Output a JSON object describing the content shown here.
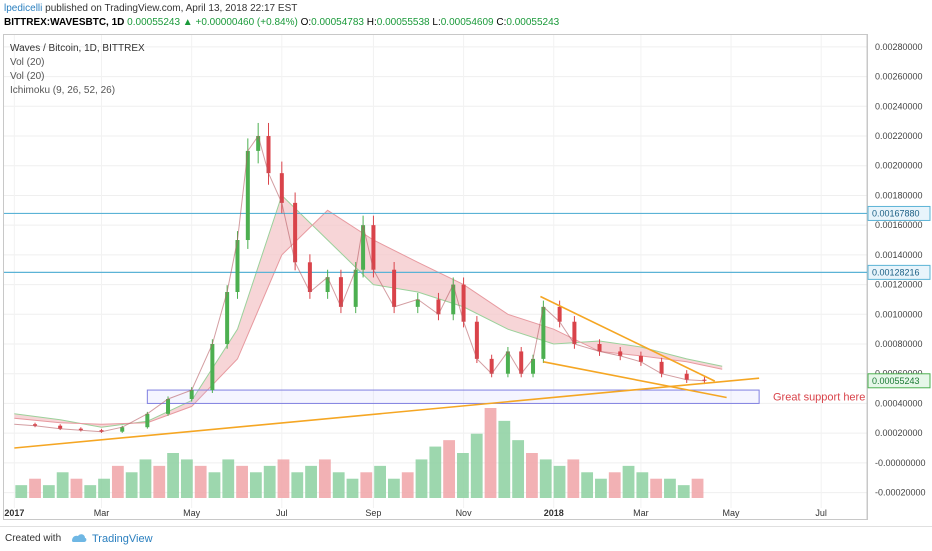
{
  "header": {
    "author": "lpedicelli",
    "published_text": "published on TradingView.com, April 13, 2018 22:17 EST"
  },
  "symbol": {
    "ticker": "BITTREX:WAVESBTC, 1D",
    "last": "0.00055243",
    "change": "+0.00000460 (+0.84%)",
    "open_label": "O:",
    "open": "0.00054783",
    "high_label": "H:",
    "high": "0.00055538",
    "low_label": "L:",
    "low": "0.00054609",
    "close_label": "C:",
    "close": "0.00055243"
  },
  "legend": {
    "title": "Waves / Bitcoin, 1D, BITTREX",
    "ind1": "Vol (20)",
    "ind2": "Vol (20)",
    "ind3": "Ichimoku (9, 26, 52, 26)"
  },
  "annotation": "Great support here",
  "footer": {
    "created": "Created with",
    "brand": "TradingView"
  },
  "colors": {
    "up": "#4caf50",
    "down": "#d9434a",
    "cloud_bear": "#f4c7c9",
    "cloud_bull": "#cfe8cf",
    "trend": "#f5a623",
    "hline": "#5bb3d6",
    "support_box": "#8080e0"
  },
  "chart_data": {
    "type": "candlestick",
    "y_axis_ticks": [
      "0.00280000",
      "0.00260000",
      "0.00240000",
      "0.00220000",
      "0.00200000",
      "0.00180000",
      "0.00160000",
      "0.00140000",
      "0.00120000",
      "0.00100000",
      "0.00080000",
      "0.00060000",
      "0.00040000",
      "0.00020000",
      "-0.00000000",
      "-0.00020000"
    ],
    "x_axis_ticks": [
      "2017",
      "Mar",
      "May",
      "Jul",
      "Sep",
      "Nov",
      "2018",
      "Mar",
      "May",
      "Jul"
    ],
    "price_labels": [
      {
        "value": 0.0016788,
        "text": "0.00167880",
        "kind": "hline"
      },
      {
        "value": 0.00128216,
        "text": "0.00128216",
        "kind": "hline"
      },
      {
        "value": 0.00055243,
        "text": "0.00055243",
        "kind": "last"
      }
    ],
    "series_close": [
      [
        "2017-01-01",
        0.00026
      ],
      [
        "2017-01-15",
        0.00025
      ],
      [
        "2017-02-01",
        0.00023
      ],
      [
        "2017-02-15",
        0.00022
      ],
      [
        "2017-03-01",
        0.00021
      ],
      [
        "2017-03-15",
        0.00024
      ],
      [
        "2017-04-01",
        0.00033
      ],
      [
        "2017-04-15",
        0.00043
      ],
      [
        "2017-05-01",
        0.00049
      ],
      [
        "2017-05-15",
        0.0008
      ],
      [
        "2017-05-25",
        0.00115
      ],
      [
        "2017-06-01",
        0.0015
      ],
      [
        "2017-06-08",
        0.0021
      ],
      [
        "2017-06-15",
        0.0022
      ],
      [
        "2017-06-22",
        0.00195
      ],
      [
        "2017-07-01",
        0.00175
      ],
      [
        "2017-07-10",
        0.00135
      ],
      [
        "2017-07-20",
        0.00115
      ],
      [
        "2017-08-01",
        0.00125
      ],
      [
        "2017-08-10",
        0.00105
      ],
      [
        "2017-08-20",
        0.0013
      ],
      [
        "2017-08-25",
        0.0016
      ],
      [
        "2017-09-01",
        0.0013
      ],
      [
        "2017-09-15",
        0.00105
      ],
      [
        "2017-10-01",
        0.0011
      ],
      [
        "2017-10-15",
        0.001
      ],
      [
        "2017-10-25",
        0.0012
      ],
      [
        "2017-11-01",
        0.00095
      ],
      [
        "2017-11-10",
        0.0007
      ],
      [
        "2017-11-20",
        0.0006
      ],
      [
        "2017-12-01",
        0.00075
      ],
      [
        "2017-12-10",
        0.0006
      ],
      [
        "2017-12-18",
        0.0007
      ],
      [
        "2017-12-25",
        0.00105
      ],
      [
        "2018-01-05",
        0.00095
      ],
      [
        "2018-01-15",
        0.0008
      ],
      [
        "2018-02-01",
        0.00075
      ],
      [
        "2018-02-15",
        0.00072
      ],
      [
        "2018-03-01",
        0.00068
      ],
      [
        "2018-03-15",
        0.0006
      ],
      [
        "2018-04-01",
        0.00056
      ],
      [
        "2018-04-13",
        0.00055243
      ]
    ],
    "cloud": {
      "span_a": [
        [
          "2017-01-01",
          0.00033
        ],
        [
          "2017-02-01",
          0.00029
        ],
        [
          "2017-03-01",
          0.00024
        ],
        [
          "2017-04-01",
          0.00028
        ],
        [
          "2017-05-01",
          0.00042
        ],
        [
          "2017-06-01",
          0.0009
        ],
        [
          "2017-07-01",
          0.0018
        ],
        [
          "2017-08-01",
          0.0015
        ],
        [
          "2017-09-01",
          0.0012
        ],
        [
          "2017-10-01",
          0.00115
        ],
        [
          "2017-11-01",
          0.00105
        ],
        [
          "2017-12-01",
          0.0009
        ],
        [
          "2018-01-01",
          0.0008
        ],
        [
          "2018-02-01",
          0.00082
        ],
        [
          "2018-03-01",
          0.00078
        ],
        [
          "2018-04-01",
          0.0007
        ],
        [
          "2018-04-25",
          0.00065
        ]
      ],
      "span_b": [
        [
          "2017-01-01",
          0.0003
        ],
        [
          "2017-02-01",
          0.00027
        ],
        [
          "2017-03-01",
          0.00026
        ],
        [
          "2017-04-01",
          0.00027
        ],
        [
          "2017-05-01",
          0.00038
        ],
        [
          "2017-06-01",
          0.0007
        ],
        [
          "2017-07-01",
          0.0014
        ],
        [
          "2017-08-01",
          0.0017
        ],
        [
          "2017-09-01",
          0.0015
        ],
        [
          "2017-10-01",
          0.00135
        ],
        [
          "2017-11-01",
          0.0012
        ],
        [
          "2017-12-01",
          0.001
        ],
        [
          "2018-01-01",
          0.0009
        ],
        [
          "2018-02-01",
          0.00075
        ],
        [
          "2018-03-01",
          0.00072
        ],
        [
          "2018-04-01",
          0.00068
        ],
        [
          "2018-04-25",
          0.00063
        ]
      ]
    },
    "volume": [
      2,
      3,
      2,
      4,
      3,
      2,
      3,
      5,
      4,
      6,
      5,
      7,
      6,
      5,
      4,
      6,
      5,
      4,
      5,
      6,
      4,
      5,
      6,
      4,
      3,
      4,
      5,
      3,
      4,
      6,
      8,
      9,
      7,
      10,
      14,
      12,
      9,
      7,
      6,
      5,
      6,
      4,
      3,
      4,
      5,
      4,
      3,
      3,
      2,
      3
    ],
    "trendlines": [
      {
        "name": "long-support",
        "from": [
          "2017-01-01",
          0.0001
        ],
        "to": [
          "2018-05-20",
          0.00057
        ]
      },
      {
        "name": "wedge-upper",
        "from": [
          "2017-12-23",
          0.00112
        ],
        "to": [
          "2018-04-20",
          0.00055
        ]
      },
      {
        "name": "wedge-lower",
        "from": [
          "2017-12-25",
          0.00068
        ],
        "to": [
          "2018-04-28",
          0.00044
        ]
      }
    ],
    "support_zone": {
      "low": 0.0004,
      "high": 0.00049,
      "from": "2017-04-01",
      "to": "2018-05-20"
    },
    "ylim": [
      -0.00025,
      0.00288
    ]
  }
}
